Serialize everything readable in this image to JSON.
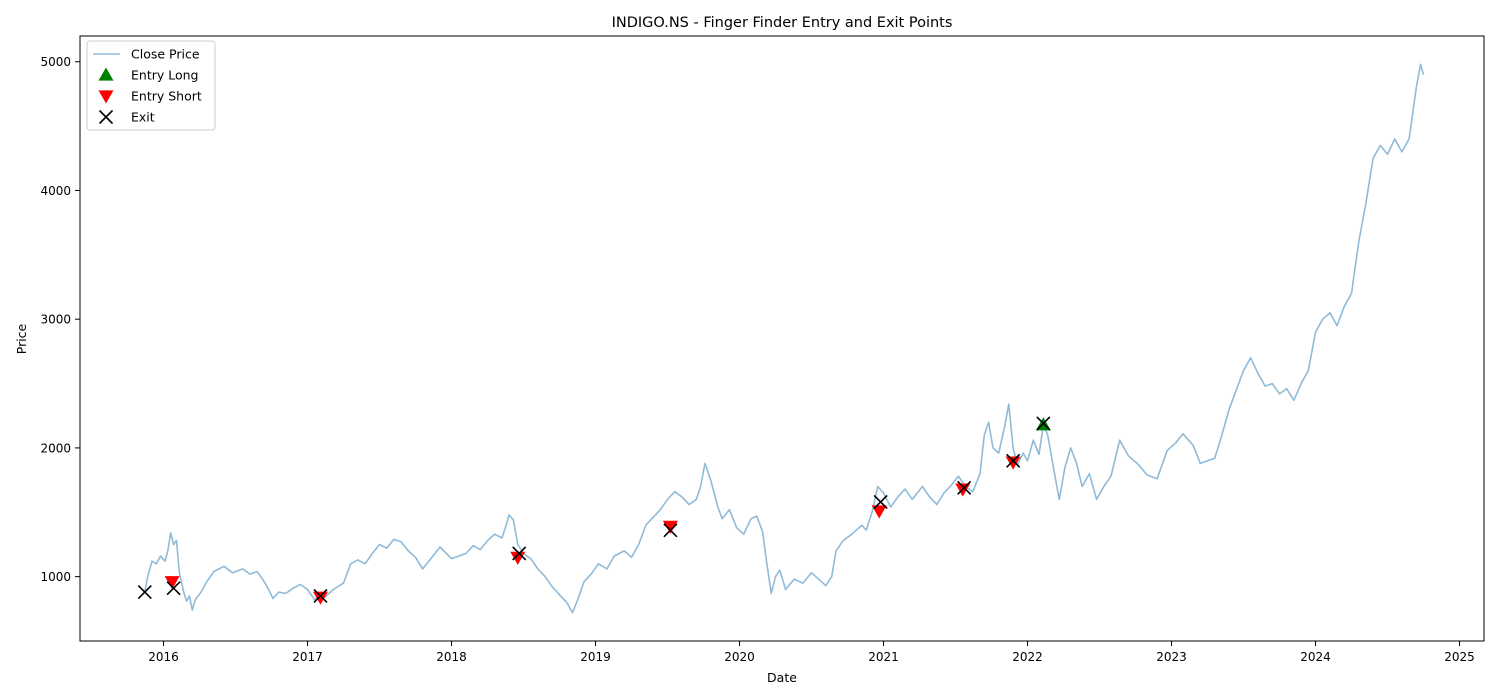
{
  "chart_data": {
    "type": "line",
    "title": "INDIGO.NS - Finger Finder Entry and Exit Points",
    "xlabel": "Date",
    "ylabel": "Price",
    "xlim": [
      2015.42,
      2025.17
    ],
    "ylim": [
      500,
      5200
    ],
    "xticks": [
      2016,
      2017,
      2018,
      2019,
      2020,
      2021,
      2022,
      2023,
      2024,
      2025
    ],
    "yticks": [
      1000,
      2000,
      3000,
      4000,
      5000
    ],
    "legend": {
      "placement": "upper-left",
      "entries": [
        "Close Price",
        "Entry Long",
        "Entry Short",
        "Exit"
      ]
    },
    "colors": {
      "close": "#1f77b4",
      "entry_long": "#008000",
      "entry_short": "#ff0000",
      "exit": "#000000"
    },
    "series": [
      {
        "name": "Close Price",
        "points": [
          [
            2015.87,
            880
          ],
          [
            2015.89,
            1000
          ],
          [
            2015.92,
            1120
          ],
          [
            2015.95,
            1100
          ],
          [
            2015.98,
            1160
          ],
          [
            2016.01,
            1120
          ],
          [
            2016.03,
            1200
          ],
          [
            2016.05,
            1340
          ],
          [
            2016.07,
            1250
          ],
          [
            2016.09,
            1280
          ],
          [
            2016.11,
            1030
          ],
          [
            2016.14,
            880
          ],
          [
            2016.16,
            810
          ],
          [
            2016.18,
            850
          ],
          [
            2016.2,
            740
          ],
          [
            2016.22,
            820
          ],
          [
            2016.26,
            880
          ],
          [
            2016.3,
            960
          ],
          [
            2016.35,
            1040
          ],
          [
            2016.42,
            1080
          ],
          [
            2016.48,
            1030
          ],
          [
            2016.55,
            1060
          ],
          [
            2016.6,
            1020
          ],
          [
            2016.65,
            1040
          ],
          [
            2016.7,
            960
          ],
          [
            2016.73,
            900
          ],
          [
            2016.76,
            830
          ],
          [
            2016.8,
            880
          ],
          [
            2016.85,
            870
          ],
          [
            2016.9,
            910
          ],
          [
            2016.95,
            940
          ],
          [
            2017.0,
            900
          ],
          [
            2017.05,
            820
          ],
          [
            2017.08,
            860
          ],
          [
            2017.12,
            840
          ],
          [
            2017.18,
            900
          ],
          [
            2017.25,
            950
          ],
          [
            2017.3,
            1100
          ],
          [
            2017.35,
            1130
          ],
          [
            2017.4,
            1100
          ],
          [
            2017.45,
            1180
          ],
          [
            2017.5,
            1250
          ],
          [
            2017.55,
            1220
          ],
          [
            2017.6,
            1290
          ],
          [
            2017.65,
            1270
          ],
          [
            2017.7,
            1200
          ],
          [
            2017.75,
            1150
          ],
          [
            2017.8,
            1060
          ],
          [
            2017.85,
            1130
          ],
          [
            2017.92,
            1230
          ],
          [
            2018.0,
            1140
          ],
          [
            2018.1,
            1180
          ],
          [
            2018.15,
            1240
          ],
          [
            2018.2,
            1210
          ],
          [
            2018.25,
            1280
          ],
          [
            2018.3,
            1330
          ],
          [
            2018.35,
            1300
          ],
          [
            2018.38,
            1400
          ],
          [
            2018.4,
            1480
          ],
          [
            2018.43,
            1440
          ],
          [
            2018.46,
            1250
          ],
          [
            2018.5,
            1180
          ],
          [
            2018.55,
            1140
          ],
          [
            2018.6,
            1060
          ],
          [
            2018.65,
            1000
          ],
          [
            2018.7,
            920
          ],
          [
            2018.75,
            860
          ],
          [
            2018.8,
            800
          ],
          [
            2018.84,
            720
          ],
          [
            2018.88,
            830
          ],
          [
            2018.92,
            960
          ],
          [
            2018.97,
            1020
          ],
          [
            2019.02,
            1100
          ],
          [
            2019.08,
            1060
          ],
          [
            2019.13,
            1160
          ],
          [
            2019.2,
            1200
          ],
          [
            2019.25,
            1150
          ],
          [
            2019.3,
            1250
          ],
          [
            2019.35,
            1400
          ],
          [
            2019.4,
            1460
          ],
          [
            2019.45,
            1520
          ],
          [
            2019.5,
            1600
          ],
          [
            2019.55,
            1660
          ],
          [
            2019.6,
            1620
          ],
          [
            2019.65,
            1560
          ],
          [
            2019.7,
            1600
          ],
          [
            2019.73,
            1700
          ],
          [
            2019.76,
            1880
          ],
          [
            2019.8,
            1750
          ],
          [
            2019.85,
            1540
          ],
          [
            2019.88,
            1450
          ],
          [
            2019.93,
            1520
          ],
          [
            2019.98,
            1380
          ],
          [
            2020.03,
            1330
          ],
          [
            2020.08,
            1450
          ],
          [
            2020.12,
            1470
          ],
          [
            2020.16,
            1350
          ],
          [
            2020.19,
            1100
          ],
          [
            2020.22,
            870
          ],
          [
            2020.25,
            1000
          ],
          [
            2020.28,
            1050
          ],
          [
            2020.32,
            900
          ],
          [
            2020.38,
            980
          ],
          [
            2020.44,
            950
          ],
          [
            2020.5,
            1030
          ],
          [
            2020.55,
            980
          ],
          [
            2020.6,
            930
          ],
          [
            2020.64,
            1000
          ],
          [
            2020.67,
            1200
          ],
          [
            2020.72,
            1280
          ],
          [
            2020.78,
            1330
          ],
          [
            2020.85,
            1400
          ],
          [
            2020.88,
            1360
          ],
          [
            2020.92,
            1500
          ],
          [
            2020.96,
            1700
          ],
          [
            2021.0,
            1650
          ],
          [
            2021.05,
            1540
          ],
          [
            2021.1,
            1620
          ],
          [
            2021.15,
            1680
          ],
          [
            2021.2,
            1600
          ],
          [
            2021.27,
            1700
          ],
          [
            2021.32,
            1620
          ],
          [
            2021.37,
            1560
          ],
          [
            2021.42,
            1650
          ],
          [
            2021.47,
            1710
          ],
          [
            2021.52,
            1780
          ],
          [
            2021.57,
            1700
          ],
          [
            2021.62,
            1660
          ],
          [
            2021.67,
            1800
          ],
          [
            2021.7,
            2100
          ],
          [
            2021.73,
            2200
          ],
          [
            2021.76,
            2000
          ],
          [
            2021.8,
            1960
          ],
          [
            2021.84,
            2160
          ],
          [
            2021.87,
            2340
          ],
          [
            2021.9,
            2000
          ],
          [
            2021.93,
            1870
          ],
          [
            2021.97,
            1960
          ],
          [
            2022.0,
            1900
          ],
          [
            2022.04,
            2060
          ],
          [
            2022.08,
            1950
          ],
          [
            2022.11,
            2180
          ],
          [
            2022.14,
            2100
          ],
          [
            2022.18,
            1850
          ],
          [
            2022.22,
            1600
          ],
          [
            2022.26,
            1850
          ],
          [
            2022.3,
            2000
          ],
          [
            2022.34,
            1880
          ],
          [
            2022.38,
            1700
          ],
          [
            2022.43,
            1800
          ],
          [
            2022.48,
            1600
          ],
          [
            2022.53,
            1700
          ],
          [
            2022.58,
            1780
          ],
          [
            2022.64,
            2060
          ],
          [
            2022.7,
            1940
          ],
          [
            2022.77,
            1870
          ],
          [
            2022.83,
            1790
          ],
          [
            2022.9,
            1760
          ],
          [
            2022.97,
            1980
          ],
          [
            2023.03,
            2040
          ],
          [
            2023.08,
            2110
          ],
          [
            2023.15,
            2020
          ],
          [
            2023.2,
            1880
          ],
          [
            2023.25,
            1900
          ],
          [
            2023.3,
            1920
          ],
          [
            2023.35,
            2100
          ],
          [
            2023.4,
            2300
          ],
          [
            2023.45,
            2450
          ],
          [
            2023.5,
            2600
          ],
          [
            2023.55,
            2700
          ],
          [
            2023.6,
            2580
          ],
          [
            2023.65,
            2480
          ],
          [
            2023.7,
            2500
          ],
          [
            2023.75,
            2420
          ],
          [
            2023.8,
            2460
          ],
          [
            2023.85,
            2370
          ],
          [
            2023.9,
            2500
          ],
          [
            2023.95,
            2600
          ],
          [
            2024.0,
            2900
          ],
          [
            2024.05,
            3000
          ],
          [
            2024.1,
            3050
          ],
          [
            2024.15,
            2950
          ],
          [
            2024.2,
            3100
          ],
          [
            2024.25,
            3200
          ],
          [
            2024.3,
            3600
          ],
          [
            2024.35,
            3900
          ],
          [
            2024.4,
            4250
          ],
          [
            2024.45,
            4350
          ],
          [
            2024.5,
            4280
          ],
          [
            2024.55,
            4400
          ],
          [
            2024.6,
            4300
          ],
          [
            2024.65,
            4400
          ],
          [
            2024.7,
            4800
          ],
          [
            2024.73,
            4980
          ],
          [
            2024.75,
            4900
          ]
        ]
      },
      {
        "name": "Entry Long",
        "marker": "triangle-up",
        "points": [
          [
            2022.11,
            2180
          ]
        ]
      },
      {
        "name": "Entry Short",
        "marker": "triangle-down",
        "points": [
          [
            2016.06,
            960
          ],
          [
            2017.09,
            840
          ],
          [
            2018.46,
            1150
          ],
          [
            2019.52,
            1390
          ],
          [
            2020.97,
            1510
          ],
          [
            2021.55,
            1680
          ],
          [
            2021.9,
            1890
          ]
        ]
      },
      {
        "name": "Exit",
        "marker": "x",
        "points": [
          [
            2015.87,
            880
          ],
          [
            2016.07,
            910
          ],
          [
            2017.09,
            850
          ],
          [
            2018.47,
            1180
          ],
          [
            2019.52,
            1360
          ],
          [
            2020.98,
            1580
          ],
          [
            2021.56,
            1690
          ],
          [
            2021.9,
            1900
          ],
          [
            2022.11,
            2190
          ]
        ]
      }
    ]
  }
}
